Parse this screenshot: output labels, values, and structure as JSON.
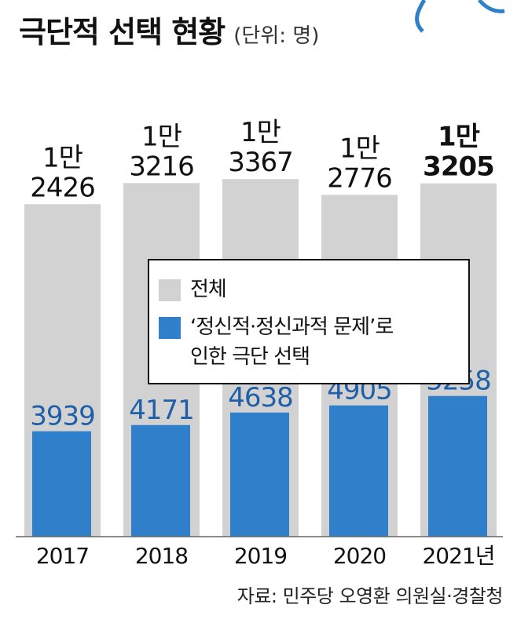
{
  "title": "극단적 선택 현황",
  "unit": "(단위: 명)",
  "source": "자료: 민주당 오영환 의원실·경찰청",
  "colors": {
    "total": "#d2d2d3",
    "sub": "#2f7fca",
    "deco": "#2f7fca"
  },
  "chart_data": {
    "type": "bar",
    "categories": [
      "2017",
      "2018",
      "2019",
      "2020",
      "2021년"
    ],
    "series": [
      {
        "name": "전체",
        "values": [
          12426,
          13216,
          13367,
          12776,
          13205
        ],
        "labels": [
          "1만\n2426",
          "1만\n3216",
          "1만\n3367",
          "1만\n2776",
          "1만\n3205"
        ]
      },
      {
        "name": "‘정신적·정신과적 문제’로\n인한 극단 선택",
        "values": [
          3939,
          4171,
          4638,
          4905,
          5258
        ],
        "labels": [
          "3939",
          "4171",
          "4638",
          "4905",
          "5258"
        ]
      }
    ],
    "emphasized_category": "2021년"
  }
}
